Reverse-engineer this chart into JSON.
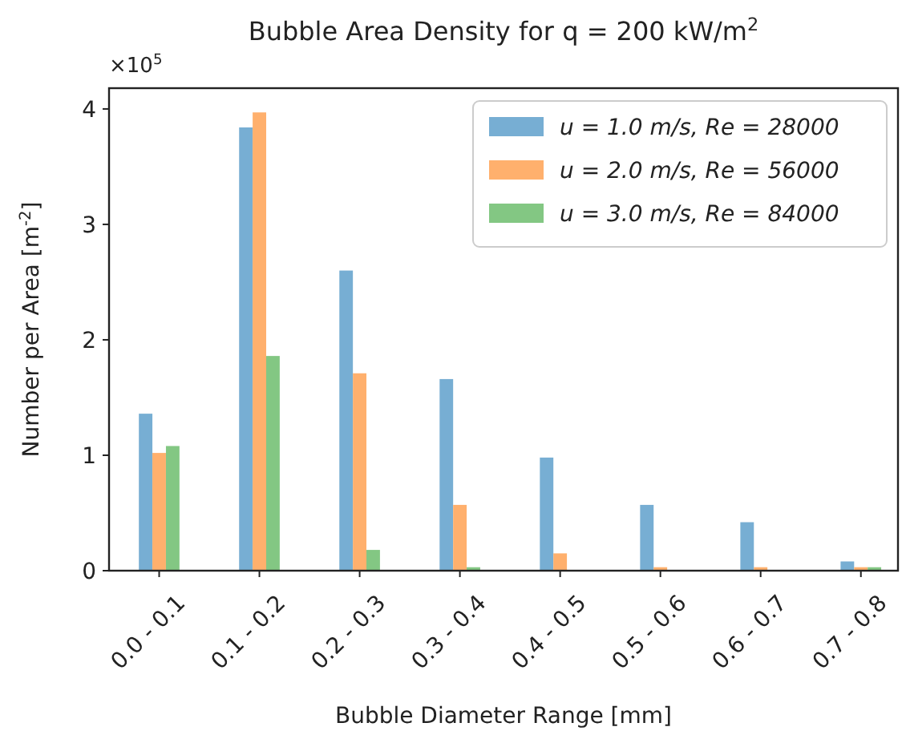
{
  "chart_data": {
    "type": "bar",
    "title": "Bubble Area Density for q = 200  kW/m$^{2}$",
    "xlabel": "Bubble Diameter Range [mm]",
    "ylabel": "Number per Area [m$^{-2}$]",
    "annotations": [
      "×10$^{5}$"
    ],
    "categories": [
      "0.0 - 0.1",
      "0.1 - 0.2",
      "0.2 - 0.3",
      "0.3 - 0.4",
      "0.4 - 0.5",
      "0.5 - 0.6",
      "0.6 - 0.7",
      "0.7 - 0.8"
    ],
    "series": [
      {
        "name": "u = 1.0 m/s, Re = 28000",
        "color": "#77aed3",
        "values": [
          1.36,
          3.84,
          2.6,
          1.66,
          0.98,
          0.57,
          0.42,
          0.08
        ]
      },
      {
        "name": "u = 2.0 m/s, Re = 56000",
        "color": "#ffb06d",
        "values": [
          1.02,
          3.97,
          1.71,
          0.57,
          0.15,
          0.03,
          0.03,
          0.03
        ]
      },
      {
        "name": "u = 3.0 m/s, Re = 84000",
        "color": "#83c783",
        "values": [
          1.08,
          1.86,
          0.18,
          0.03,
          0,
          0,
          0,
          0.03
        ]
      }
    ],
    "ylim": [
      0,
      4.18
    ],
    "yticks": [
      0,
      1,
      2,
      3,
      4
    ],
    "legend": "top right",
    "grid": false
  }
}
